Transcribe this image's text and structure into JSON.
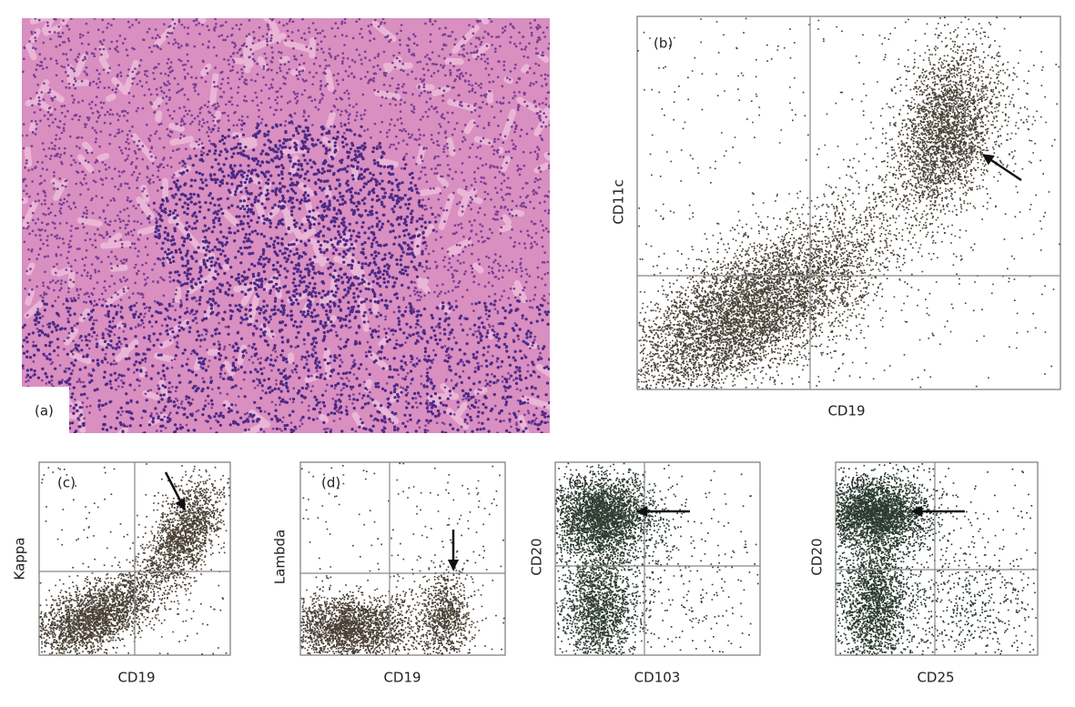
{
  "panels": [
    {
      "label": "(a)"
    },
    {
      "label": "(b)",
      "x_label": "CD19",
      "y_label": "CD11c"
    },
    {
      "label": "(c)",
      "x_label": "CD19",
      "y_label": "Kappa"
    },
    {
      "label": "(d)",
      "x_label": "CD19",
      "y_label": "Lambda"
    },
    {
      "label": "(e)",
      "x_label": "CD103",
      "y_label": "CD20"
    },
    {
      "label": "(f)",
      "x_label": "CD25",
      "y_label": "CD20"
    }
  ]
}
